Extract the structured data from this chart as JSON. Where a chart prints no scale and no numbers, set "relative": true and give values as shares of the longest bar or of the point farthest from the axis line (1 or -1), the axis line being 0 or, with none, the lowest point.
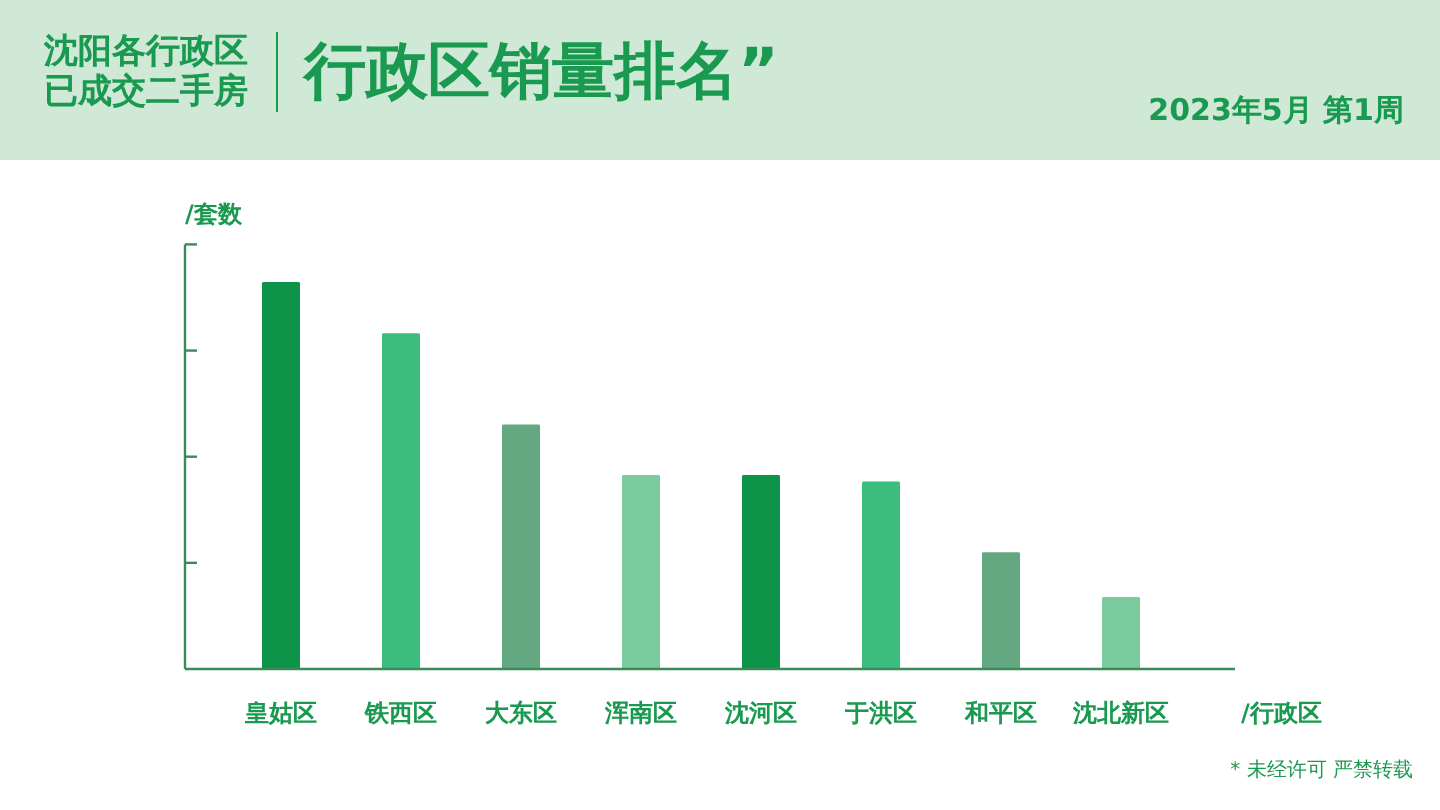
{
  "chart_data": {
    "type": "bar",
    "title": "行政区销量排名”",
    "subtitle": "沈阳各行政区已成交二手房",
    "ylabel": "/套数",
    "xlabel": "/行政区",
    "annotations": [
      "2023年5月 第1周",
      "* 未经许可 严禁转载"
    ],
    "categories": [
      "皇姑区",
      "铁西区",
      "大东区",
      "浑南区",
      "沈河区",
      "于洪区",
      "和平区",
      "沈北新区"
    ],
    "values": [
      1,
      0.867,
      0.631,
      0.5,
      0.5,
      0.483,
      0.3,
      0.184
    ],
    "colors": [
      "#0d9448",
      "#3dbd7d",
      "#64a882",
      "#7ccb9f",
      "#0d9448",
      "#3dbd7d",
      "#64a882",
      "#7ccb9f"
    ],
    "relative": true
  }
}
